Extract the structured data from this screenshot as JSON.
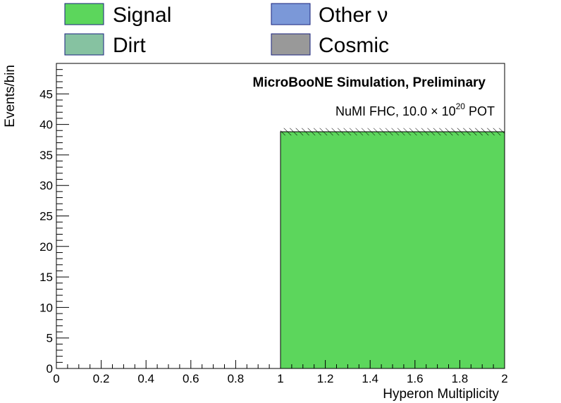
{
  "chart_data": {
    "type": "bar",
    "xlabel": "Hyperon Multiplicity",
    "ylabel": "Events/bin",
    "xlim": [
      0,
      2
    ],
    "ylim": [
      0,
      50
    ],
    "x_ticks": [
      "0",
      "0.2",
      "0.4",
      "0.6",
      "0.8",
      "1",
      "1.2",
      "1.4",
      "1.6",
      "1.8",
      "2"
    ],
    "y_ticks": [
      "0",
      "5",
      "10",
      "15",
      "20",
      "25",
      "30",
      "35",
      "40",
      "45"
    ],
    "bins": [
      {
        "low": 0,
        "high": 1,
        "signal": 0,
        "other_nu": 0,
        "dirt": 0,
        "cosmic": 0,
        "uncertainty": 0
      },
      {
        "low": 1,
        "high": 2,
        "signal": 38.8,
        "other_nu": 0,
        "dirt": 0,
        "cosmic": 0,
        "uncertainty": 0.6
      }
    ],
    "series": [
      {
        "name": "Signal",
        "color": "#5cd65c"
      },
      {
        "name": "Other ν",
        "color": "#7b98d8"
      },
      {
        "name": "Dirt",
        "color": "#86c2a1"
      },
      {
        "name": "Cosmic",
        "color": "#999999"
      }
    ],
    "annotations": {
      "banner": "MicroBooNE Simulation, Preliminary",
      "pot_prefix": "NuMI FHC, 10.0  × 10",
      "pot_exponent": "20",
      "pot_suffix": " POT"
    },
    "legend_placement": "top",
    "grid": false
  }
}
